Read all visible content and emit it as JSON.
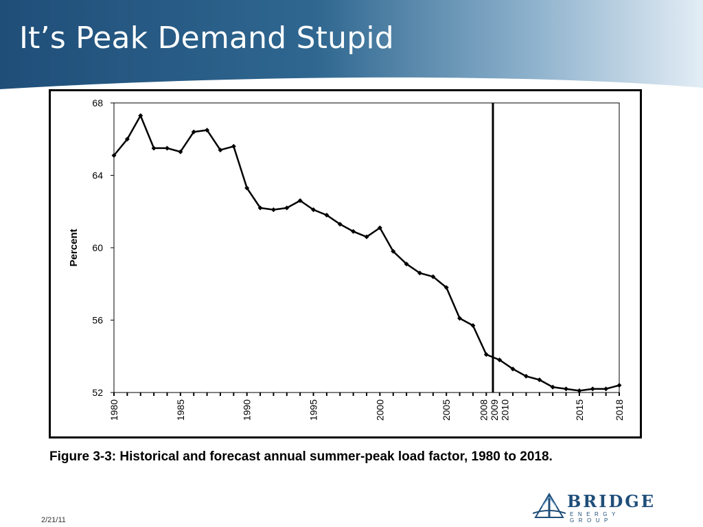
{
  "slide": {
    "title": "It’s Peak Demand Stupid",
    "caption": "Figure 3-3: Historical and forecast annual summer-peak load factor, 1980 to 2018.",
    "date": "2/21/11",
    "logo": {
      "word": "BRIDGE",
      "sub": "ENERGY GROUP"
    },
    "colors": {
      "banner_dark": "#1f4e79",
      "banner_light": "#dbe8f2",
      "brand": "#1f4e79"
    }
  },
  "chart_data": {
    "type": "line",
    "title": "",
    "xlabel": "",
    "ylabel": "Percent",
    "xlim": [
      1980,
      2018
    ],
    "ylim": [
      52,
      68
    ],
    "y_ticks": [
      52,
      56,
      60,
      64,
      68
    ],
    "x_tick_labels": [
      "1980",
      "1985",
      "1990",
      "1995",
      "2000",
      "2005",
      "2008",
      "2009",
      "2010",
      "2015",
      "2018"
    ],
    "divider_year": 2008.5,
    "grid": false,
    "legend": "none",
    "series": [
      {
        "x": [
          1980,
          1981,
          1982,
          1983,
          1984,
          1985,
          1986,
          1987,
          1988,
          1989,
          1990,
          1991,
          1992,
          1993,
          1994,
          1995,
          1996,
          1997,
          1998,
          1999,
          2000,
          2001,
          2002,
          2003,
          2004,
          2005,
          2006,
          2007,
          2008,
          2009,
          2010,
          2011,
          2012,
          2013,
          2014,
          2015,
          2016,
          2017,
          2018
        ],
        "values": [
          65.1,
          66.0,
          67.3,
          65.5,
          65.5,
          65.3,
          66.4,
          66.5,
          65.4,
          65.6,
          63.3,
          62.2,
          62.1,
          62.2,
          62.6,
          62.1,
          61.8,
          61.3,
          60.9,
          60.6,
          61.1,
          59.8,
          59.1,
          58.6,
          58.4,
          57.8,
          56.1,
          55.7,
          54.1,
          53.8,
          53.3,
          52.9,
          52.7,
          52.3,
          52.2,
          52.1,
          52.2,
          52.2,
          52.4
        ]
      }
    ]
  }
}
